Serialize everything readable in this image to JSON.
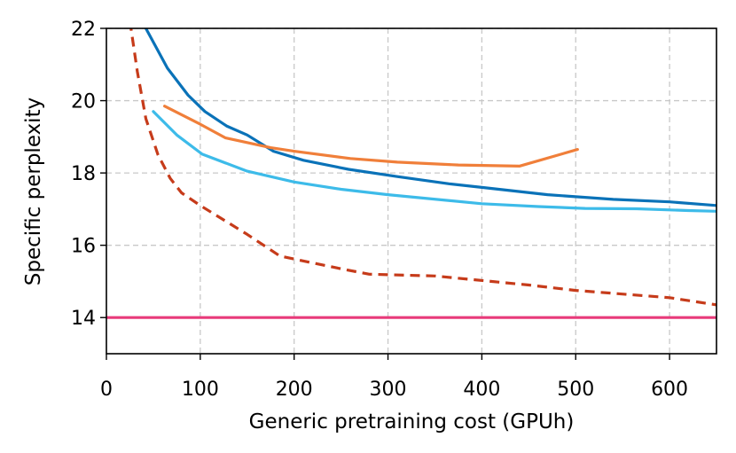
{
  "chart_data": {
    "type": "line",
    "title": "",
    "xlabel": "Generic pretraining cost (GPUh)",
    "ylabel": "Specific perplexity",
    "xlim": [
      0,
      650
    ],
    "ylim": [
      13,
      22
    ],
    "xticks": [
      0,
      100,
      200,
      300,
      400,
      500,
      600
    ],
    "yticks": [
      14,
      16,
      18,
      20,
      22
    ],
    "grid": true,
    "legend": "none",
    "series": [
      {
        "name": "dark-blue",
        "color": "#0a72b8",
        "style": "solid",
        "x": [
          40,
          65,
          87,
          105,
          128,
          150,
          178,
          210,
          258,
          310,
          365,
          400,
          470,
          540,
          600,
          650
        ],
        "y": [
          22.1,
          20.9,
          20.15,
          19.7,
          19.3,
          19.05,
          18.6,
          18.35,
          18.1,
          17.9,
          17.7,
          17.6,
          17.4,
          17.27,
          17.2,
          17.1
        ]
      },
      {
        "name": "orange",
        "color": "#f07f3a",
        "style": "solid",
        "x": [
          62,
          100,
          127,
          175,
          200,
          260,
          310,
          375,
          440,
          502
        ],
        "y": [
          19.85,
          19.35,
          18.97,
          18.7,
          18.6,
          18.4,
          18.3,
          18.22,
          18.19,
          18.65
        ]
      },
      {
        "name": "light-blue",
        "color": "#3dbbe9",
        "style": "solid",
        "x": [
          50,
          75,
          102,
          150,
          200,
          250,
          300,
          400,
          460,
          510,
          565,
          620,
          650
        ],
        "y": [
          19.7,
          19.05,
          18.52,
          18.05,
          17.75,
          17.55,
          17.4,
          17.15,
          17.07,
          17.02,
          17.01,
          16.96,
          16.94
        ]
      },
      {
        "name": "red-dashed",
        "color": "#c63b1a",
        "style": "dashed",
        "x": [
          25,
          33,
          42,
          55,
          68,
          80,
          100,
          150,
          185,
          250,
          280,
          350,
          450,
          500,
          600,
          650
        ],
        "y": [
          22.2,
          20.8,
          19.5,
          18.5,
          17.85,
          17.45,
          17.1,
          16.3,
          15.7,
          15.35,
          15.2,
          15.15,
          14.9,
          14.75,
          14.55,
          14.35
        ]
      },
      {
        "name": "pink-baseline",
        "color": "#e83a7a",
        "style": "solid",
        "x": [
          0,
          650
        ],
        "y": [
          14.0,
          14.0
        ]
      }
    ]
  }
}
